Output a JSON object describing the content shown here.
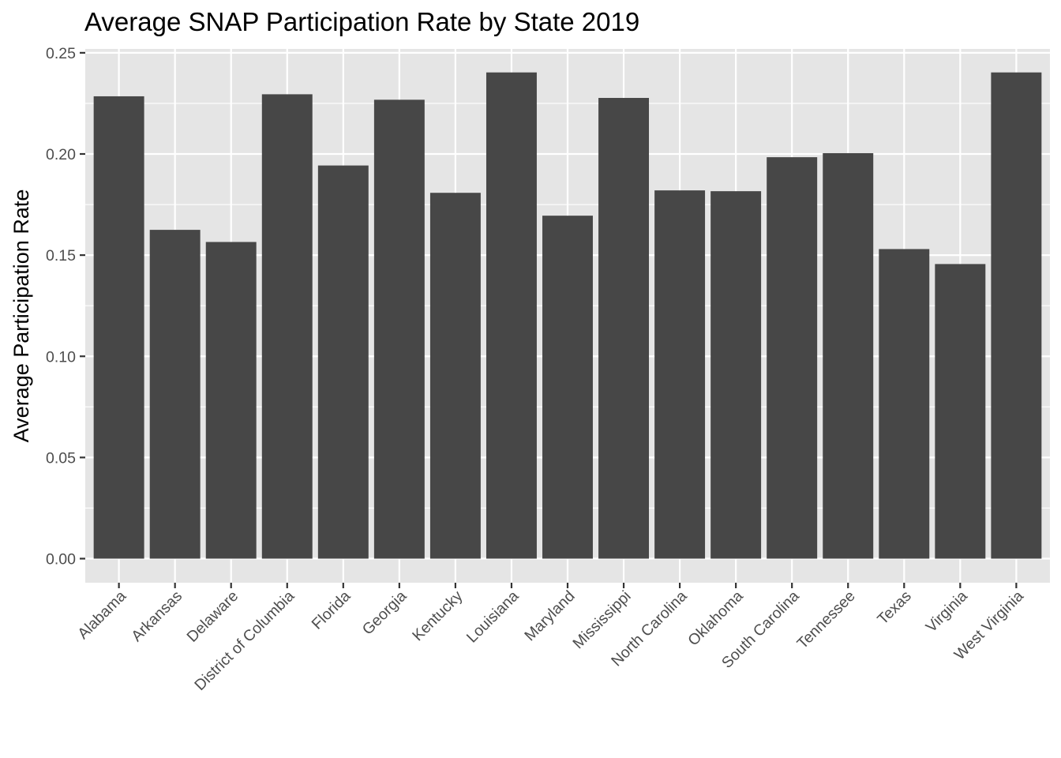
{
  "chart_data": {
    "type": "bar",
    "title": "Average SNAP Participation Rate by State 2019",
    "xlabel": "",
    "ylabel": "Average Participation Rate",
    "ylim": [
      -0.0119,
      0.2519
    ],
    "yticks": [
      0.0,
      0.05,
      0.1,
      0.15,
      0.2,
      0.25
    ],
    "ytick_labels": [
      "0.00",
      "0.05",
      "0.10",
      "0.15",
      "0.20",
      "0.25"
    ],
    "grid": true,
    "legend": "none",
    "categories": [
      "Alabama",
      "Arkansas",
      "Delaware",
      "District of Columbia",
      "Florida",
      "Georgia",
      "Kentucky",
      "Louisiana",
      "Maryland",
      "Mississippi",
      "North Carolina",
      "Oklahoma",
      "South Carolina",
      "Tennessee",
      "Texas",
      "Virginia",
      "West Virginia"
    ],
    "values": [
      0.2285,
      0.1625,
      0.1565,
      0.2295,
      0.1943,
      0.2268,
      0.1808,
      0.2403,
      0.1695,
      0.2277,
      0.182,
      0.1816,
      0.1984,
      0.2004,
      0.153,
      0.1456,
      0.2403
    ],
    "colors": {
      "bar": "#474747",
      "panel": "#e5e5e5",
      "grid": "#ffffff"
    }
  }
}
